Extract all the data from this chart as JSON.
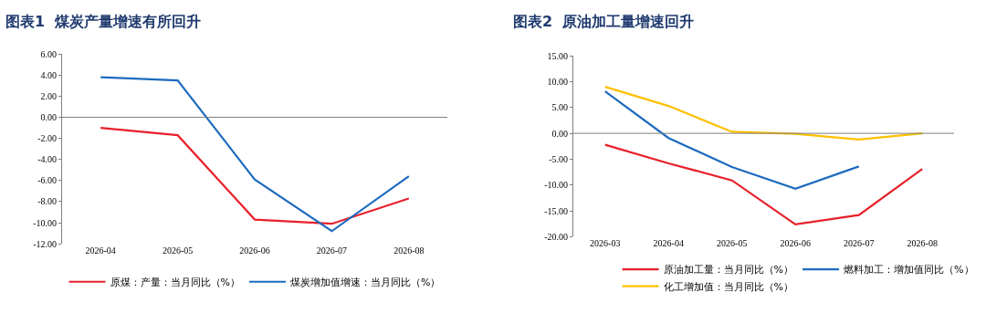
{
  "chart_data": [
    {
      "type": "line",
      "title": "图表1  煤炭产量增速有所回升",
      "categories": [
        "2026-04",
        "2026-05",
        "2026-06",
        "2026-07",
        "2026-08"
      ],
      "series": [
        {
          "name": "原煤：产量：当月同比（%）",
          "color": "#e8202a",
          "values": [
            -1.0,
            -1.7,
            -9.7,
            -10.1,
            -7.7
          ]
        },
        {
          "name": "煤炭增加值增速：当月同比（%）",
          "color": "#1e6bbf",
          "values": [
            3.8,
            3.5,
            -5.9,
            -10.8,
            -5.6
          ]
        }
      ],
      "ylim": [
        -12,
        6
      ],
      "yticks": [
        {
          "value": -12,
          "label": "-12.00"
        },
        {
          "value": -10,
          "label": "-10.00"
        },
        {
          "value": -8,
          "label": "-8.00"
        },
        {
          "value": -6,
          "label": "-6.00"
        },
        {
          "value": -4,
          "label": "-4.00"
        },
        {
          "value": -2,
          "label": "-2.00"
        },
        {
          "value": 0,
          "label": "0.00"
        },
        {
          "value": 2,
          "label": "2.00"
        },
        {
          "value": 4,
          "label": "4.00"
        },
        {
          "value": 6,
          "label": "6.00"
        }
      ],
      "ref_lines": [
        {
          "axis": "y",
          "value": 0,
          "color": "#7f7f7f"
        }
      ],
      "grid": false,
      "legend": "bottom",
      "line_style": "solid"
    },
    {
      "type": "line",
      "title": "图表2  原油加工量增速回升",
      "categories": [
        "2026-03",
        "2026-04",
        "2026-05",
        "2026-06",
        "2026-07",
        "2026-08"
      ],
      "series": [
        {
          "name": "原油加工量：当月同比（%）",
          "color": "#e8202a",
          "values": [
            -2.2,
            -5.8,
            -9.1,
            -17.6,
            -15.8,
            -6.9
          ]
        },
        {
          "name": "燃料加工：增加值同比（%）",
          "color": "#1e6bbf",
          "values": [
            8.1,
            -0.9,
            -6.5,
            -10.7,
            -6.4,
            null
          ]
        },
        {
          "name": "化工增加值：当月同比（%）",
          "color": "#ffc000",
          "values": [
            9.0,
            5.3,
            0.3,
            -0.1,
            -1.2,
            0.0
          ]
        }
      ],
      "ylim": [
        -20,
        15
      ],
      "yticks": [
        {
          "value": -20,
          "label": "-20.00"
        },
        {
          "value": -15,
          "label": "-15.00"
        },
        {
          "value": -10,
          "label": "-10.00"
        },
        {
          "value": -5,
          "label": "-5.00"
        },
        {
          "value": 0,
          "label": "0.00"
        },
        {
          "value": 5,
          "label": "5.00"
        },
        {
          "value": 10,
          "label": "10.00"
        },
        {
          "value": 15,
          "label": "15.00"
        }
      ],
      "ref_lines": [
        {
          "axis": "y",
          "value": 0,
          "color": "#7f7f7f"
        }
      ],
      "grid": false,
      "legend": "bottom",
      "line_style": "solid"
    }
  ]
}
